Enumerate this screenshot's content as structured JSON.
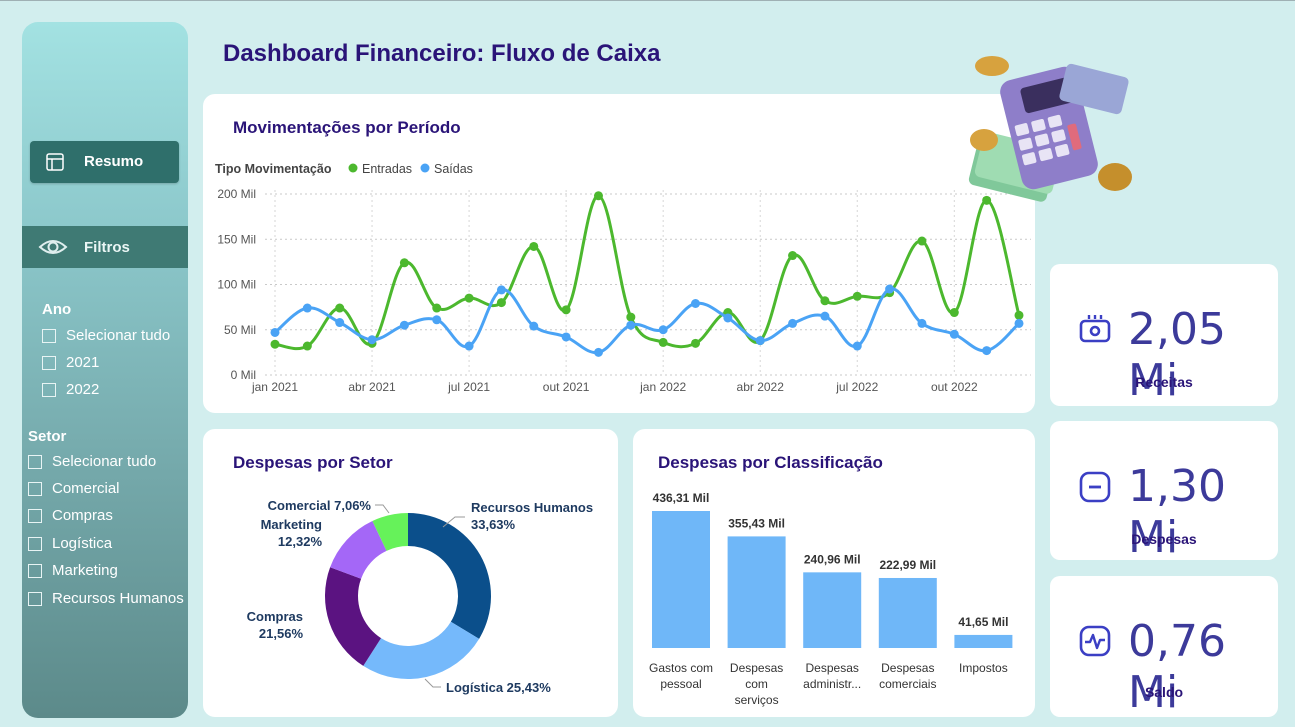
{
  "page": {
    "title": "Dashboard Financeiro: Fluxo de Caixa"
  },
  "sidebar": {
    "resumo_label": "Resumo",
    "filtros_label": "Filtros",
    "ano": {
      "title": "Ano",
      "items": [
        "Selecionar tudo",
        "2021",
        "2022"
      ]
    },
    "setor": {
      "title": "Setor",
      "items": [
        "Selecionar tudo",
        "Comercial",
        "Compras",
        "Logística",
        "Marketing",
        "Recursos Humanos"
      ]
    }
  },
  "kpis": {
    "receitas": {
      "value": "2,05 Mi",
      "label": "Receitas",
      "icon": "money-icon"
    },
    "despesas": {
      "value": "1,30 Mi",
      "label": "Despesas",
      "icon": "minus-icon"
    },
    "saldo": {
      "value": "0,76 Mi",
      "label": "Saldo",
      "icon": "pulse-icon"
    }
  },
  "colors": {
    "entradas": "#4cb82e",
    "saidas": "#4aa3f5",
    "title": "#2a1478",
    "bars": "#6fb7f8"
  },
  "chart_data": [
    {
      "type": "line",
      "title": "Movimentações por Período",
      "legend_title": "Tipo Movimentação",
      "legend_position": "top-left",
      "x_ticks": [
        "jan 2021",
        "abr 2021",
        "jul 2021",
        "out 2021",
        "jan 2022",
        "abr 2022",
        "jul 2022",
        "out 2022"
      ],
      "y_ticks": [
        "0 Mil",
        "50 Mil",
        "100 Mil",
        "150 Mil",
        "200 Mil"
      ],
      "ylim": [
        0,
        200
      ],
      "grid": true,
      "x": [
        "jan 2021",
        "fev 2021",
        "mar 2021",
        "abr 2021",
        "mai 2021",
        "jun 2021",
        "jul 2021",
        "ago 2021",
        "set 2021",
        "out 2021",
        "nov 2021",
        "dez 2021",
        "jan 2022",
        "fev 2022",
        "mar 2022",
        "abr 2022",
        "mai 2022",
        "jun 2022",
        "jul 2022",
        "ago 2022",
        "set 2022",
        "out 2022",
        "nov 2022",
        "dez 2022"
      ],
      "series": [
        {
          "name": "Entradas",
          "values": [
            34,
            32,
            74,
            35,
            124,
            74,
            85,
            80,
            142,
            72,
            198,
            64,
            36,
            35,
            69,
            38,
            132,
            82,
            87,
            91,
            148,
            69,
            193,
            66
          ]
        },
        {
          "name": "Saídas",
          "values": [
            47,
            74,
            58,
            39,
            55,
            61,
            32,
            94,
            54,
            42,
            25,
            55,
            50,
            79,
            63,
            38,
            57,
            65,
            32,
            95,
            57,
            45,
            27,
            57
          ]
        }
      ]
    },
    {
      "type": "pie",
      "title": "Despesas por Setor",
      "slices": [
        {
          "label": "Recursos Humanos",
          "value": 33.63,
          "display": "33,63%",
          "color": "#0b4f8b"
        },
        {
          "label": "Logística",
          "value": 25.43,
          "display": "25,43%",
          "color": "#75b9fb"
        },
        {
          "label": "Compras",
          "value": 21.56,
          "display": "21,56%",
          "color": "#5b1381"
        },
        {
          "label": "Marketing",
          "value": 12.32,
          "display": "12,32%",
          "color": "#a467f7"
        },
        {
          "label": "Comercial",
          "value": 7.06,
          "display": "7,06%",
          "color": "#66f25a"
        }
      ]
    },
    {
      "type": "bar",
      "title": "Despesas por Classificação",
      "categories": [
        [
          "Gastos com",
          "pessoal"
        ],
        [
          "Despesas",
          "com",
          "serviços"
        ],
        [
          "Despesas",
          "administr..."
        ],
        [
          "Despesas",
          "comerciais"
        ],
        [
          "Impostos"
        ]
      ],
      "values": [
        436.31,
        355.43,
        240.96,
        222.99,
        41.65
      ],
      "labels": [
        "436,31 Mil",
        "355,43 Mil",
        "240,96 Mil",
        "222,99 Mil",
        "41,65 Mil"
      ]
    }
  ]
}
